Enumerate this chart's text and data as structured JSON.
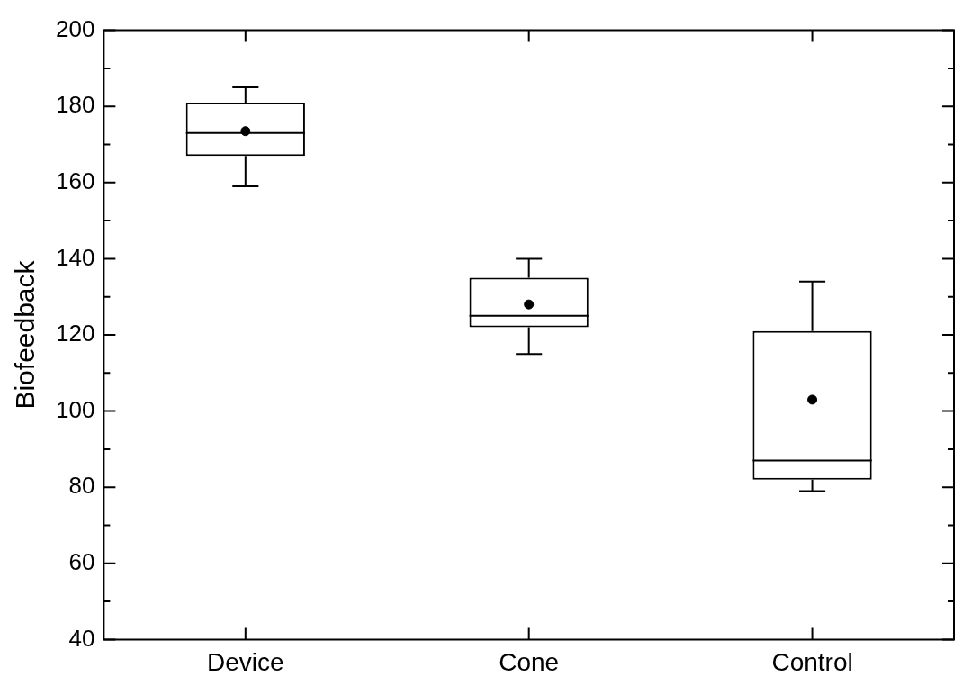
{
  "chart_data": {
    "type": "box",
    "ylabel": "Biofeedback",
    "categories": [
      "Device",
      "Cone",
      "Control"
    ],
    "color": "#000000",
    "boxes": [
      {
        "low": 159,
        "q1": 167,
        "median": 173,
        "q3": 181,
        "high": 185,
        "mean": 173.5
      },
      {
        "low": 115,
        "q1": 122,
        "median": 125,
        "q3": 135,
        "high": 140,
        "mean": 128
      },
      {
        "low": 79,
        "q1": 82,
        "median": 87,
        "q3": 121,
        "high": 134,
        "mean": 103
      }
    ],
    "ylim": [
      40,
      200
    ],
    "yticks": [
      40,
      {
        "value": 50,
        "label": null
      },
      60,
      {
        "value": 70,
        "label": null
      },
      80,
      {
        "value": 90,
        "label": null
      },
      100,
      {
        "value": 110,
        "label": null
      },
      120,
      {
        "value": 130,
        "label": null
      },
      140,
      {
        "value": 150,
        "label": null
      },
      160,
      {
        "value": 170,
        "label": null
      },
      180,
      {
        "value": 190,
        "label": null
      },
      200
    ],
    "grid": false,
    "legend": false
  }
}
